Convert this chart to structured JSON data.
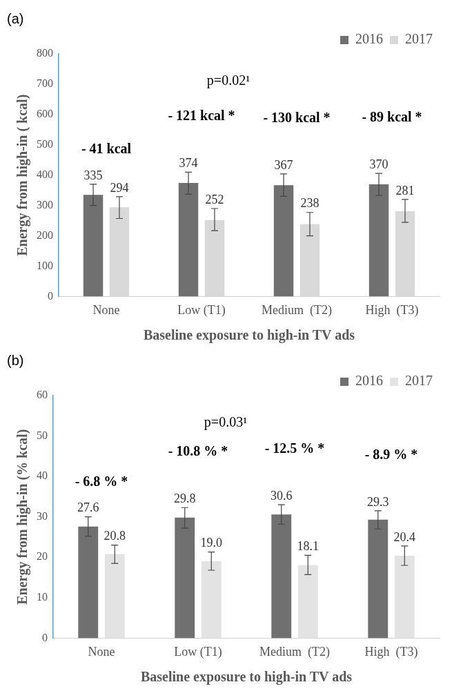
{
  "chart_data": [
    {
      "type": "bar",
      "title": "(a)",
      "xlabel": "Baseline exposure to high-in TV ads",
      "ylabel": "Energy from high-in ( kcal)",
      "categories": [
        "None",
        "Low (T1)",
        "Medium  (T2)",
        "High  (T3)"
      ],
      "series": [
        {
          "name": "2016",
          "color": "#707070",
          "values": [
            335,
            374,
            367,
            370
          ],
          "errors": [
            [
              300,
              370
            ],
            [
              337,
              410
            ],
            [
              330,
              404
            ],
            [
              333,
              406
            ]
          ]
        },
        {
          "name": "2017",
          "color": "#d9d9d9",
          "values": [
            294,
            252,
            238,
            281
          ],
          "errors": [
            [
              257,
              329
            ],
            [
              217,
              290
            ],
            [
              200,
              277
            ],
            [
              244,
              320
            ]
          ]
        }
      ],
      "ylim": [
        0,
        800
      ],
      "yticks": [
        0,
        100,
        200,
        300,
        400,
        500,
        600,
        700,
        800
      ],
      "grid": false,
      "legend": "top right",
      "data_labels": true,
      "annotations": [
        "p=0.02¹",
        "- 41 kcal",
        "- 121 kcal *",
        "- 130 kcal *",
        "- 89 kcal *"
      ]
    },
    {
      "type": "bar",
      "title": "(b)",
      "xlabel": "Baseline exposure to high-in TV ads",
      "ylabel": "Energy from high-in (% kcal)",
      "categories": [
        "None",
        "Low (T1)",
        "Medium  (T2)",
        "High  (T3)"
      ],
      "series": [
        {
          "name": "2016",
          "color": "#707070",
          "values": [
            27.6,
            29.8,
            30.6,
            29.3
          ],
          "value_labels": [
            "27.6",
            "29.8",
            "30.6",
            "29.3"
          ],
          "errors": [
            [
              25.2,
              30.0
            ],
            [
              27.2,
              32.3
            ],
            [
              28.2,
              33.0
            ],
            [
              27.0,
              31.5
            ]
          ]
        },
        {
          "name": "2017",
          "color": "#e3e3e3",
          "values": [
            20.8,
            19.0,
            18.1,
            20.4
          ],
          "value_labels": [
            "20.8",
            "19.0",
            "18.1",
            "20.4"
          ],
          "errors": [
            [
              18.5,
              23.0
            ],
            [
              16.8,
              21.3
            ],
            [
              15.7,
              20.5
            ],
            [
              18.0,
              22.8
            ]
          ]
        }
      ],
      "ylim": [
        0,
        60
      ],
      "yticks": [
        0,
        10,
        20,
        30,
        40,
        50,
        60
      ],
      "grid": false,
      "legend": "top right",
      "annotations": [
        "p=0.03¹",
        "- 6.8 % *",
        "- 10.8 % *",
        "- 12.5 % *",
        "- 8.9 % *"
      ]
    }
  ]
}
